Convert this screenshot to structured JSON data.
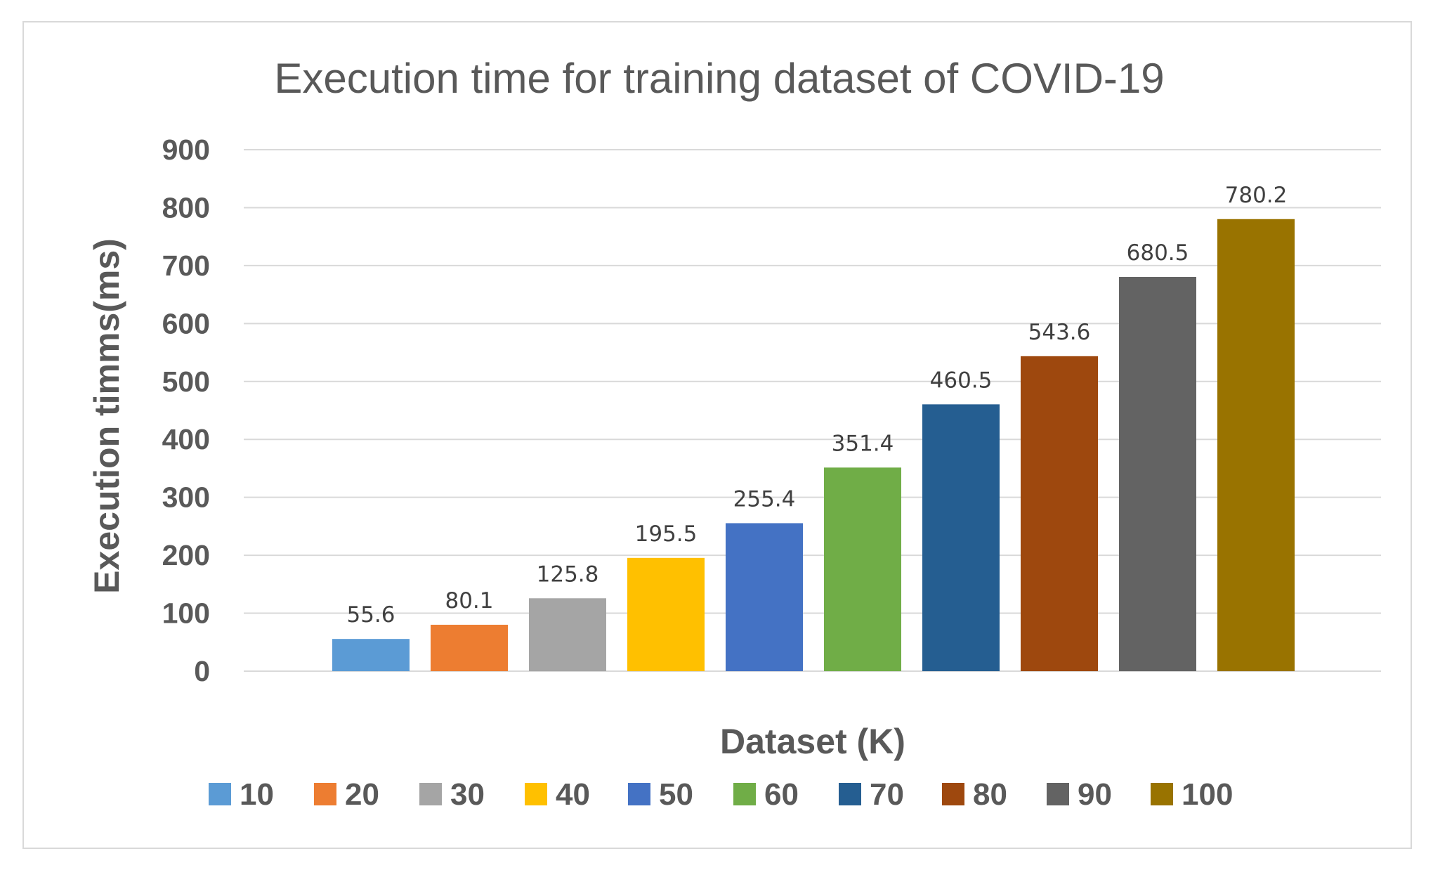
{
  "chart_data": {
    "type": "bar",
    "title": "Execution time for training dataset of COVID-19",
    "xlabel": "Dataset (K)",
    "ylabel": "Execution timms(ms)",
    "ylim": [
      0,
      900
    ],
    "yticks": [
      0,
      100,
      200,
      300,
      400,
      500,
      600,
      700,
      800,
      900
    ],
    "grid": true,
    "legend_position": "bottom",
    "series": [
      {
        "name": "10",
        "value": 55.6,
        "label": "55.6",
        "color": "#5B9BD5"
      },
      {
        "name": "20",
        "value": 80.1,
        "label": "80.1",
        "color": "#ED7D31"
      },
      {
        "name": "30",
        "value": 125.8,
        "label": "125.8",
        "color": "#A5A5A5"
      },
      {
        "name": "40",
        "value": 195.5,
        "label": "195.5",
        "color": "#FFC000"
      },
      {
        "name": "50",
        "value": 255.4,
        "label": "255.4",
        "color": "#4472C4"
      },
      {
        "name": "60",
        "value": 351.4,
        "label": "351.4",
        "color": "#70AD47"
      },
      {
        "name": "70",
        "value": 460.5,
        "label": "460.5",
        "color": "#255E91"
      },
      {
        "name": "80",
        "value": 543.6,
        "label": "543.6",
        "color": "#9E480E"
      },
      {
        "name": "90",
        "value": 680.5,
        "label": "680.5",
        "color": "#636363"
      },
      {
        "name": "100",
        "value": 780.2,
        "label": "780.2",
        "color": "#997300"
      }
    ]
  }
}
